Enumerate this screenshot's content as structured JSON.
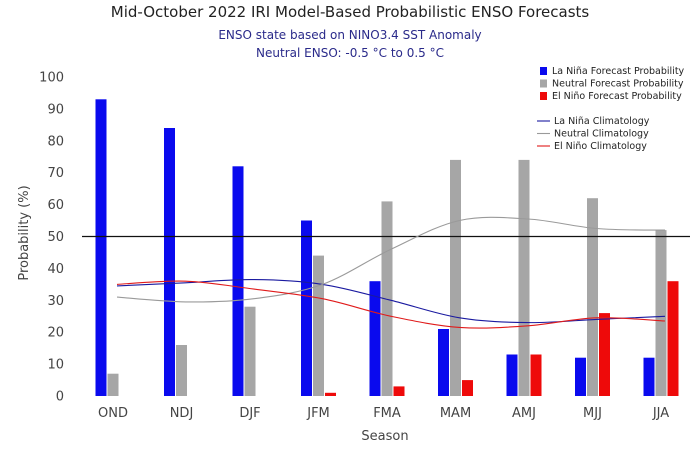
{
  "chart_data": {
    "type": "bar",
    "title": "Mid-October 2022 IRI Model-Based Probabilistic ENSO Forecasts",
    "subtitle_lines": [
      "ENSO state based on NINO3.4 SST Anomaly",
      "Neutral ENSO: -0.5 °C to 0.5 °C"
    ],
    "xlabel": "Season",
    "ylabel": "Probability (%)",
    "ylim": [
      0,
      100
    ],
    "yticks": [
      0,
      10,
      20,
      30,
      40,
      50,
      60,
      70,
      80,
      90,
      100
    ],
    "reference_line": 50,
    "grid": false,
    "legend_position": "top-right",
    "categories": [
      "OND",
      "NDJ",
      "DJF",
      "JFM",
      "FMA",
      "MAM",
      "AMJ",
      "MJJ",
      "JJA"
    ],
    "series": [
      {
        "name": "La Niña Forecast Probability",
        "color": "#0a0aee",
        "values": [
          93,
          84,
          72,
          55,
          36,
          21,
          13,
          12,
          12
        ]
      },
      {
        "name": "Neutral Forecast Probability",
        "color": "#a6a6a6",
        "values": [
          7,
          16,
          28,
          44,
          61,
          74,
          74,
          62,
          52
        ]
      },
      {
        "name": "El Niño Forecast Probability",
        "color": "#ee0a0a",
        "values": [
          0,
          0,
          0,
          1,
          3,
          5,
          13,
          26,
          36
        ]
      }
    ],
    "climatology": [
      {
        "name": "La Niña Climatology",
        "color": "#1a1aa0",
        "values": [
          34.5,
          35.5,
          36.5,
          35,
          30,
          24.5,
          23,
          24,
          25
        ]
      },
      {
        "name": "Neutral Climatology",
        "color": "#9a9a9a",
        "values": [
          31,
          29.5,
          30.5,
          35,
          46,
          55,
          55.5,
          52.5,
          52
        ]
      },
      {
        "name": "El Niño Climatology",
        "color": "#e01a1a",
        "values": [
          35,
          36,
          33.5,
          30.5,
          25,
          21.5,
          22,
          24.5,
          23.5
        ]
      }
    ]
  }
}
